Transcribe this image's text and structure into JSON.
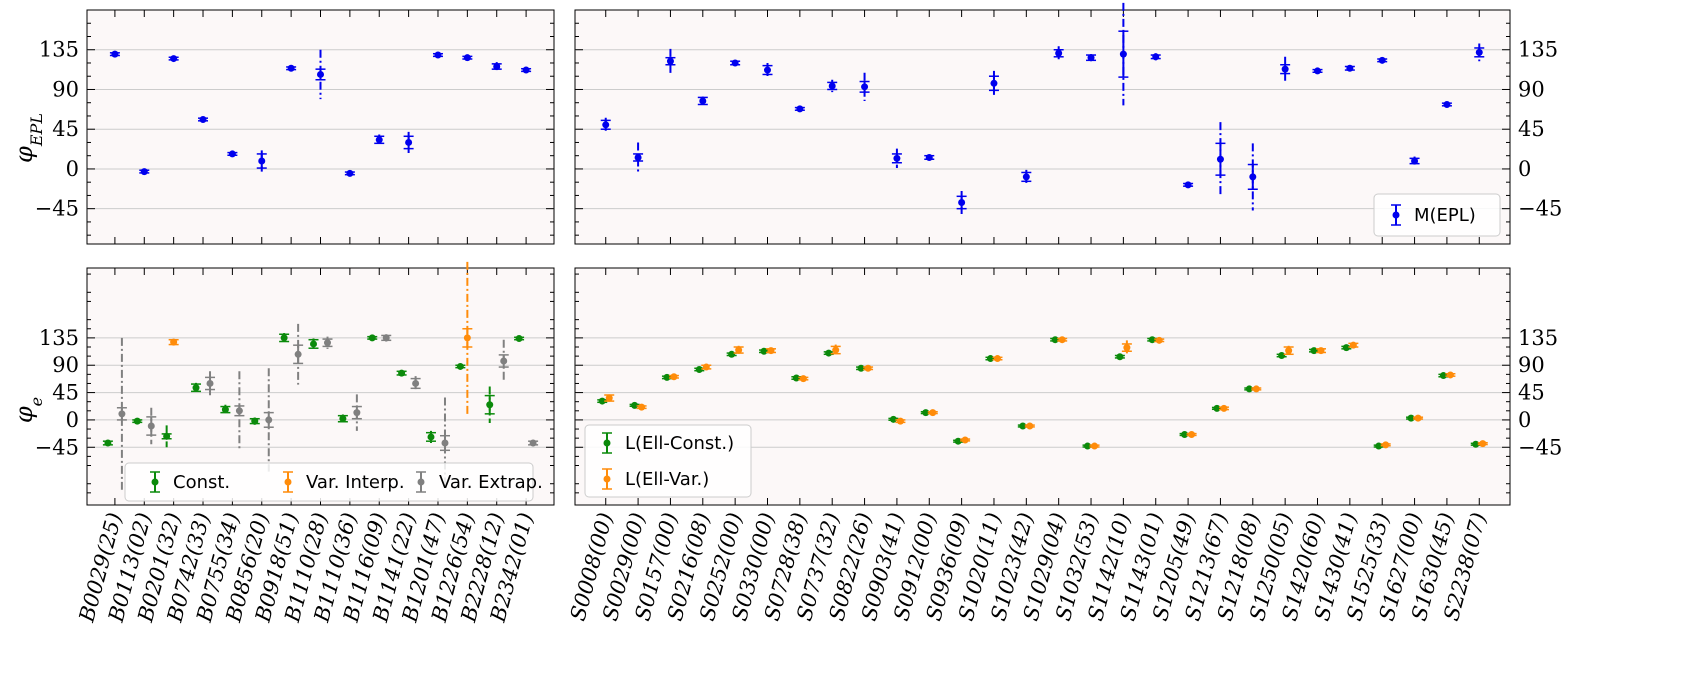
{
  "colors": {
    "blue": "#0000ee",
    "green": "#0b8a0b",
    "orange": "#ff8c0a",
    "gray": "#808080"
  },
  "chart_data": [
    {
      "panel": "top-left",
      "type": "scatter",
      "ylabel": "φ_EPL",
      "ylim": [
        -85,
        180
      ],
      "yticks": [
        135,
        90,
        45,
        0,
        -45
      ],
      "ytick_labels": [
        "135",
        "90",
        "45",
        "0",
        "−45"
      ],
      "categories": [
        "B0029(25)",
        "B0113(02)",
        "B0201(32)",
        "B0742(33)",
        "B0755(34)",
        "B0856(20)",
        "B0918(51)",
        "B1110(28)",
        "B1110(36)",
        "B1116(09)",
        "B1141(22)",
        "B1201(47)",
        "B1226(54)",
        "B2228(12)",
        "B2342(01)"
      ],
      "series": [
        {
          "name": "M(EPL)",
          "color": "blue",
          "values": [
            130,
            -3,
            125,
            56,
            17,
            9,
            114,
            107,
            -5,
            33,
            30,
            129,
            126,
            116,
            112
          ],
          "err": [
            1.5,
            1.5,
            1.5,
            1.5,
            1.5,
            8,
            1.5,
            6,
            1.5,
            4,
            7,
            1.5,
            1.5,
            3,
            1.5
          ],
          "outer": [
            1.5,
            1.5,
            1.5,
            1.5,
            1.5,
            12,
            1.5,
            28,
            1.5,
            6,
            12,
            1.5,
            1.5,
            5,
            1.5
          ]
        }
      ]
    },
    {
      "panel": "top-right",
      "type": "scatter",
      "ylim": [
        -85,
        180
      ],
      "yticks": [
        135,
        90,
        45,
        0,
        -45
      ],
      "ytick_labels": [
        "135",
        "90",
        "45",
        "0",
        "−45"
      ],
      "legend": "bottom-right",
      "categories": [
        "S0008(00)",
        "S0029(00)",
        "S0157(00)",
        "S0216(08)",
        "S0252(00)",
        "S0330(00)",
        "S0728(38)",
        "S0737(32)",
        "S0822(26)",
        "S0903(41)",
        "S0912(00)",
        "S0936(09)",
        "S1020(11)",
        "S1023(42)",
        "S1029(04)",
        "S1032(53)",
        "S1142(10)",
        "S1143(01)",
        "S1205(49)",
        "S1213(67)",
        "S1218(08)",
        "S1250(05)",
        "S1420(60)",
        "S1430(41)",
        "S1525(33)",
        "S1627(00)",
        "S1630(45)",
        "S2238(07)"
      ],
      "series": [
        {
          "name": "M(EPL)",
          "color": "blue",
          "values": [
            50,
            13,
            122,
            77,
            120,
            112,
            68,
            94,
            93,
            12,
            13,
            -38,
            97,
            -9,
            131,
            126,
            130,
            127,
            -18,
            11,
            -9,
            113,
            111,
            114,
            123,
            9,
            73,
            132
          ],
          "err": [
            5,
            4,
            4,
            4,
            2,
            5,
            1.5,
            4,
            6,
            5,
            2,
            7,
            8,
            5,
            4,
            3,
            26,
            2,
            1.5,
            18,
            14,
            5,
            1.5,
            2,
            1.5,
            3,
            1.5,
            5
          ],
          "outer": [
            8,
            17,
            14,
            5,
            3,
            8,
            1.5,
            7,
            16,
            11,
            3,
            13,
            14,
            8,
            8,
            4,
            58,
            4,
            1.5,
            42,
            38,
            14,
            1.5,
            3,
            1.5,
            5,
            1.5,
            10
          ]
        }
      ]
    },
    {
      "panel": "bottom-left",
      "type": "scatter",
      "ylabel": "φ_e",
      "ylim": [
        -140,
        250
      ],
      "yticks": [
        135,
        90,
        45,
        0,
        -45
      ],
      "ytick_labels": [
        "135",
        "90",
        "45",
        "0",
        "−45"
      ],
      "legend": "bottom",
      "categories": [
        "B0029(25)",
        "B0113(02)",
        "B0201(32)",
        "B0742(33)",
        "B0755(34)",
        "B0856(20)",
        "B0918(51)",
        "B1110(28)",
        "B1110(36)",
        "B1116(09)",
        "B1141(22)",
        "B1201(47)",
        "B1226(54)",
        "B2228(12)",
        "B2342(01)"
      ],
      "series": [
        {
          "name": "Const.",
          "color": "green",
          "values": [
            -38,
            -2,
            -27,
            53,
            17,
            -2,
            135,
            125,
            2,
            135,
            77,
            -28,
            88,
            25,
            134
          ],
          "err": [
            3,
            2,
            4,
            6,
            5,
            4,
            6,
            7,
            5,
            2,
            3,
            7,
            2,
            15,
            2
          ],
          "outer": [
            3,
            2,
            18,
            8,
            8,
            6,
            8,
            9,
            7,
            2,
            4,
            10,
            2,
            30,
            2
          ]
        },
        {
          "name": "Var. Interp.",
          "color": "orange",
          "values": [
            null,
            null,
            128,
            null,
            null,
            null,
            null,
            null,
            null,
            null,
            null,
            null,
            135,
            null,
            null
          ],
          "err": [
            0,
            0,
            4,
            0,
            0,
            0,
            0,
            0,
            0,
            0,
            0,
            0,
            15,
            0,
            0
          ],
          "outer": [
            0,
            0,
            4,
            0,
            0,
            0,
            0,
            0,
            0,
            0,
            0,
            0,
            125,
            0,
            0
          ]
        },
        {
          "name": "Var. Extrap.",
          "color": "gray",
          "values": [
            10,
            -10,
            null,
            60,
            15,
            0,
            108,
            127,
            12,
            135,
            60,
            -38,
            null,
            97,
            -38
          ],
          "err": [
            10,
            15,
            0,
            10,
            8,
            12,
            15,
            6,
            10,
            4,
            8,
            12,
            0,
            10,
            3
          ],
          "outer": [
            125,
            30,
            0,
            20,
            65,
            85,
            50,
            10,
            30,
            6,
            12,
            75,
            0,
            35,
            5
          ]
        }
      ]
    },
    {
      "panel": "bottom-right",
      "type": "scatter",
      "ylim": [
        -140,
        250
      ],
      "yticks": [
        135,
        90,
        45,
        0,
        -45
      ],
      "ytick_labels": [
        "135",
        "90",
        "45",
        "0",
        "−45"
      ],
      "legend": "bottom-left",
      "categories": [
        "S0008(00)",
        "S0029(00)",
        "S0157(00)",
        "S0216(08)",
        "S0252(00)",
        "S0330(00)",
        "S0728(38)",
        "S0737(32)",
        "S0822(26)",
        "S0903(41)",
        "S0912(00)",
        "S0936(09)",
        "S1020(11)",
        "S1023(42)",
        "S1029(04)",
        "S1032(53)",
        "S1142(10)",
        "S1143(01)",
        "S1205(49)",
        "S1213(67)",
        "S1218(08)",
        "S1250(05)",
        "S1420(60)",
        "S1430(41)",
        "S1525(33)",
        "S1627(00)",
        "S1630(45)",
        "S2238(07)"
      ],
      "series": [
        {
          "name": "L(Ell-Const.)",
          "color": "green",
          "values": [
            31,
            24,
            70,
            83,
            108,
            113,
            69,
            110,
            85,
            1,
            12,
            -35,
            101,
            -10,
            132,
            -43,
            104,
            132,
            -24,
            19,
            51,
            106,
            114,
            119,
            -43,
            3,
            73,
            -40
          ],
          "err": [
            2,
            1.5,
            2,
            2,
            2,
            2,
            2,
            2,
            2,
            1.5,
            1.5,
            1.5,
            2,
            1.5,
            2,
            1.5,
            2,
            2,
            1.5,
            1.5,
            1.5,
            2,
            2,
            2,
            1.5,
            1.5,
            2,
            1.5
          ],
          "outer": [
            2,
            1.5,
            2,
            2,
            2,
            2,
            2,
            2,
            2,
            1.5,
            1.5,
            1.5,
            2,
            1.5,
            2,
            1.5,
            2,
            2,
            1.5,
            1.5,
            1.5,
            2,
            2,
            2,
            1.5,
            1.5,
            2,
            1.5
          ]
        },
        {
          "name": "L(Ell-Var.)",
          "color": "orange",
          "values": [
            36,
            21,
            71,
            87,
            115,
            114,
            68,
            115,
            85,
            -2,
            12,
            -33,
            101,
            -10,
            132,
            -43,
            119,
            131,
            -24,
            19,
            51,
            114,
            114,
            123,
            -41,
            3,
            74,
            -39
          ],
          "err": [
            5,
            2,
            2,
            3,
            5,
            3,
            2,
            6,
            2,
            2,
            1.5,
            1.5,
            2,
            1.5,
            2,
            1.5,
            6,
            2,
            1.5,
            2,
            1.5,
            6,
            3,
            3,
            1.5,
            1.5,
            2,
            1.5
          ],
          "outer": [
            6,
            3,
            3,
            4,
            7,
            4,
            3,
            9,
            3,
            3,
            1.5,
            2,
            3,
            2,
            3,
            2,
            12,
            3,
            2,
            3,
            2,
            8,
            4,
            4,
            2,
            2,
            3,
            2
          ]
        }
      ]
    }
  ]
}
